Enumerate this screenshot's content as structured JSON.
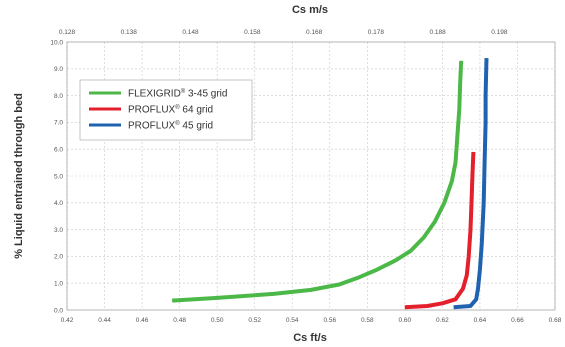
{
  "chart_data": {
    "type": "line",
    "xlabel": "Cs  ft/s",
    "x2label": "Cs  m/s",
    "ylabel": "% Liquid entrained through bed",
    "xlim": [
      0.42,
      0.68
    ],
    "x2lim": [
      0.128,
      0.207
    ],
    "ylim": [
      0.0,
      10.0
    ],
    "x_ticks": [
      "0.42",
      "0.44",
      "0.46",
      "0.48",
      "0.50",
      "0.52",
      "0.54",
      "0.56",
      "0.58",
      "0.60",
      "0.62",
      "0.64",
      "0.66",
      "0.68"
    ],
    "x2_ticks": [
      "0.128",
      "0.138",
      "0.148",
      "0.158",
      "0.168",
      "0.178",
      "0.188",
      "0.198"
    ],
    "y_ticks": [
      "0.0",
      "1.0",
      "2.0",
      "3.0",
      "4.0",
      "5.0",
      "6.0",
      "7.0",
      "8.0",
      "9.0",
      "10.0"
    ],
    "grid": true,
    "legend_position": "top-left",
    "series": [
      {
        "name_main": "FLEXIGRID",
        "name_mark": "®",
        "name_rest": " 3-45 grid",
        "color": "#4cb848",
        "points": [
          [
            0.476,
            0.35
          ],
          [
            0.5,
            0.45
          ],
          [
            0.53,
            0.6
          ],
          [
            0.55,
            0.75
          ],
          [
            0.565,
            0.95
          ],
          [
            0.575,
            1.2
          ],
          [
            0.585,
            1.5
          ],
          [
            0.595,
            1.85
          ],
          [
            0.603,
            2.2
          ],
          [
            0.61,
            2.7
          ],
          [
            0.616,
            3.3
          ],
          [
            0.621,
            4.0
          ],
          [
            0.625,
            4.8
          ],
          [
            0.627,
            5.5
          ],
          [
            0.628,
            6.5
          ],
          [
            0.629,
            7.5
          ],
          [
            0.6295,
            8.5
          ],
          [
            0.63,
            9.3
          ]
        ]
      },
      {
        "name_main": "PROFLUX",
        "name_mark": "®",
        "name_rest": "  64 grid",
        "color": "#e3202b",
        "points": [
          [
            0.6,
            0.1
          ],
          [
            0.612,
            0.15
          ],
          [
            0.62,
            0.25
          ],
          [
            0.627,
            0.4
          ],
          [
            0.631,
            0.8
          ],
          [
            0.633,
            1.3
          ],
          [
            0.634,
            2.0
          ],
          [
            0.635,
            3.0
          ],
          [
            0.6355,
            4.0
          ],
          [
            0.636,
            5.0
          ],
          [
            0.6365,
            5.9
          ]
        ]
      },
      {
        "name_main": "PROFLUX",
        "name_mark": "®",
        "name_rest": "  45 grid",
        "color": "#1f63b0",
        "points": [
          [
            0.626,
            0.1
          ],
          [
            0.635,
            0.15
          ],
          [
            0.638,
            0.4
          ],
          [
            0.639,
            0.8
          ],
          [
            0.64,
            1.5
          ],
          [
            0.641,
            2.5
          ],
          [
            0.642,
            4.0
          ],
          [
            0.6425,
            5.5
          ],
          [
            0.643,
            7.0
          ],
          [
            0.643,
            8.0
          ],
          [
            0.6435,
            9.4
          ]
        ]
      }
    ]
  }
}
